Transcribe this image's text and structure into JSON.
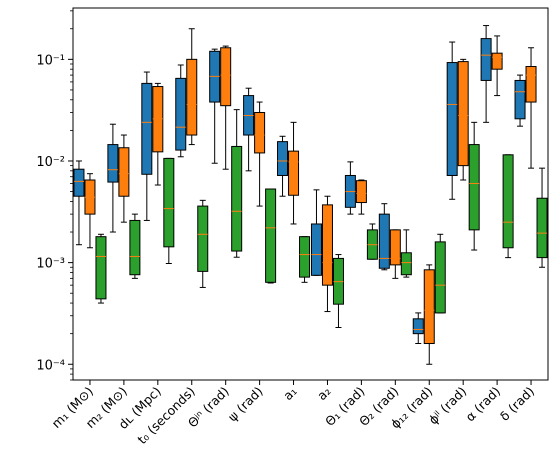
{
  "chart_data": {
    "type": "box",
    "yscale": "log",
    "ylim": [
      7e-05,
      0.32
    ],
    "ytick_labels": [
      "10⁻⁴",
      "10⁻³",
      "10⁻²",
      "10⁻¹"
    ],
    "ytick_values": [
      0.0001,
      0.001,
      0.01,
      0.1
    ],
    "categories": [
      "m₁ (M⊙)",
      "m₂ (M⊙)",
      "dʟ (Mpc)",
      "t₀ (seconds)",
      "Θʲⁿ (rad)",
      "ψ (rad)",
      "a₁",
      "a₂",
      "Θ₁ (rad)",
      "Θ₂ (rad)",
      "ϕ₁₂ (rad)",
      "ϕʲˡ (rad)",
      "α (rad)",
      "δ (rad)"
    ],
    "series": [
      {
        "color": "#1f77b4",
        "boxes": [
          {
            "whislo": 0.0015,
            "q1": 0.0045,
            "med": 0.0063,
            "q3": 0.0083,
            "whishi": 0.01
          },
          {
            "whislo": 0.002,
            "q1": 0.0062,
            "med": 0.0082,
            "q3": 0.0145,
            "whishi": 0.023
          },
          {
            "whislo": 0.0026,
            "q1": 0.0074,
            "med": 0.024,
            "q3": 0.058,
            "whishi": 0.075
          },
          {
            "whislo": 0.011,
            "q1": 0.0128,
            "med": 0.0215,
            "q3": 0.065,
            "whishi": 0.088
          },
          {
            "whislo": 0.0095,
            "q1": 0.038,
            "med": 0.068,
            "q3": 0.12,
            "whishi": 0.126
          },
          {
            "whislo": 0.008,
            "q1": 0.018,
            "med": 0.028,
            "q3": 0.044,
            "whishi": 0.052
          },
          {
            "whislo": 0.0045,
            "q1": 0.0072,
            "med": 0.01,
            "q3": 0.0155,
            "whishi": 0.0175
          },
          {
            "whislo": 0.00075,
            "q1": 0.00075,
            "med": 0.0012,
            "q3": 0.0024,
            "whishi": 0.0052
          },
          {
            "whislo": 0.003,
            "q1": 0.0035,
            "med": 0.005,
            "q3": 0.0072,
            "whishi": 0.0098
          },
          {
            "whislo": 0.00085,
            "q1": 0.00088,
            "med": 0.0011,
            "q3": 0.003,
            "whishi": 0.0038
          },
          {
            "whislo": 0.00016,
            "q1": 0.0002,
            "med": 0.00022,
            "q3": 0.00028,
            "whishi": 0.00032
          },
          {
            "whislo": 0.0042,
            "q1": 0.0072,
            "med": 0.036,
            "q3": 0.093,
            "whishi": 0.148
          },
          {
            "whislo": 0.024,
            "q1": 0.062,
            "med": 0.11,
            "q3": 0.16,
            "whishi": 0.215
          },
          {
            "whislo": 0.022,
            "q1": 0.026,
            "med": 0.048,
            "q3": 0.062,
            "whishi": 0.07
          }
        ]
      },
      {
        "color": "#ff7f0e",
        "boxes": [
          {
            "whislo": 0.0014,
            "q1": 0.003,
            "med": 0.0044,
            "q3": 0.0065,
            "whishi": 0.0075
          },
          {
            "whislo": 0.0025,
            "q1": 0.0045,
            "med": 0.0075,
            "q3": 0.0135,
            "whishi": 0.018
          },
          {
            "whislo": 0.0058,
            "q1": 0.0123,
            "med": 0.026,
            "q3": 0.054,
            "whishi": 0.058
          },
          {
            "whislo": 0.0145,
            "q1": 0.018,
            "med": 0.036,
            "q3": 0.1,
            "whishi": 0.2
          },
          {
            "whislo": 0.0083,
            "q1": 0.035,
            "med": 0.07,
            "q3": 0.13,
            "whishi": 0.135
          },
          {
            "whislo": 0.0036,
            "q1": 0.012,
            "med": 0.018,
            "q3": 0.03,
            "whishi": 0.038
          },
          {
            "whislo": 0.0024,
            "q1": 0.0046,
            "med": 0.0098,
            "q3": 0.0125,
            "whishi": 0.024
          },
          {
            "whislo": 0.00033,
            "q1": 0.0006,
            "med": 0.001,
            "q3": 0.0037,
            "whishi": 0.0045
          },
          {
            "whislo": 0.003,
            "q1": 0.0039,
            "med": 0.0048,
            "q3": 0.0064,
            "whishi": 0.0065
          },
          {
            "whislo": 0.0007,
            "q1": 0.00095,
            "med": 0.0011,
            "q3": 0.0021,
            "whishi": 0.0021
          },
          {
            "whislo": 0.0001,
            "q1": 0.00016,
            "med": 0.00034,
            "q3": 0.00085,
            "whishi": 0.00095
          },
          {
            "whislo": 0.0065,
            "q1": 0.009,
            "med": 0.028,
            "q3": 0.095,
            "whishi": 0.1
          },
          {
            "whislo": 0.044,
            "q1": 0.08,
            "med": 0.105,
            "q3": 0.115,
            "whishi": 0.17
          },
          {
            "whislo": 0.0085,
            "q1": 0.038,
            "med": 0.07,
            "q3": 0.085,
            "whishi": 0.13
          }
        ]
      },
      {
        "color": "#2ca02c",
        "boxes": [
          {
            "whislo": 0.0004,
            "q1": 0.00044,
            "med": 0.00115,
            "q3": 0.0018,
            "whishi": 0.0019
          },
          {
            "whislo": 0.0007,
            "q1": 0.00076,
            "med": 0.00115,
            "q3": 0.0026,
            "whishi": 0.003
          },
          {
            "whislo": 0.00098,
            "q1": 0.00143,
            "med": 0.0034,
            "q3": 0.0106,
            "whishi": 0.0106
          },
          {
            "whislo": 0.00057,
            "q1": 0.00082,
            "med": 0.0019,
            "q3": 0.0036,
            "whishi": 0.0041
          },
          {
            "whislo": 0.00113,
            "q1": 0.0013,
            "med": 0.0032,
            "q3": 0.0139,
            "whishi": 0.032
          },
          {
            "whislo": 0.00063,
            "q1": 0.00064,
            "med": 0.0022,
            "q3": 0.0053,
            "whishi": 0.0053
          },
          {
            "whislo": 0.00064,
            "q1": 0.00072,
            "med": 0.0012,
            "q3": 0.0018,
            "whishi": 0.0018
          },
          {
            "whislo": 0.00023,
            "q1": 0.00039,
            "med": 0.00065,
            "q3": 0.0011,
            "whishi": 0.0012
          },
          {
            "whislo": 0.00108,
            "q1": 0.00108,
            "med": 0.0015,
            "q3": 0.0021,
            "whishi": 0.0024
          },
          {
            "whislo": 0.00072,
            "q1": 0.00076,
            "med": 0.001,
            "q3": 0.00125,
            "whishi": 0.0021
          },
          {
            "whislo": 0.00032,
            "q1": 0.00032,
            "med": 0.0006,
            "q3": 0.0016,
            "whishi": 0.0019
          },
          {
            "whislo": 0.00133,
            "q1": 0.0021,
            "med": 0.006,
            "q3": 0.0145,
            "whishi": 0.024
          },
          {
            "whislo": 0.00112,
            "q1": 0.0014,
            "med": 0.0025,
            "q3": 0.0115,
            "whishi": 0.0115
          },
          {
            "whislo": 0.0009,
            "q1": 0.00112,
            "med": 0.00195,
            "q3": 0.0043,
            "whishi": 0.0085
          }
        ]
      }
    ],
    "median_color": "#ff7f0e",
    "grid": false,
    "legend": "none",
    "title": "",
    "xlabel": "",
    "ylabel": ""
  }
}
